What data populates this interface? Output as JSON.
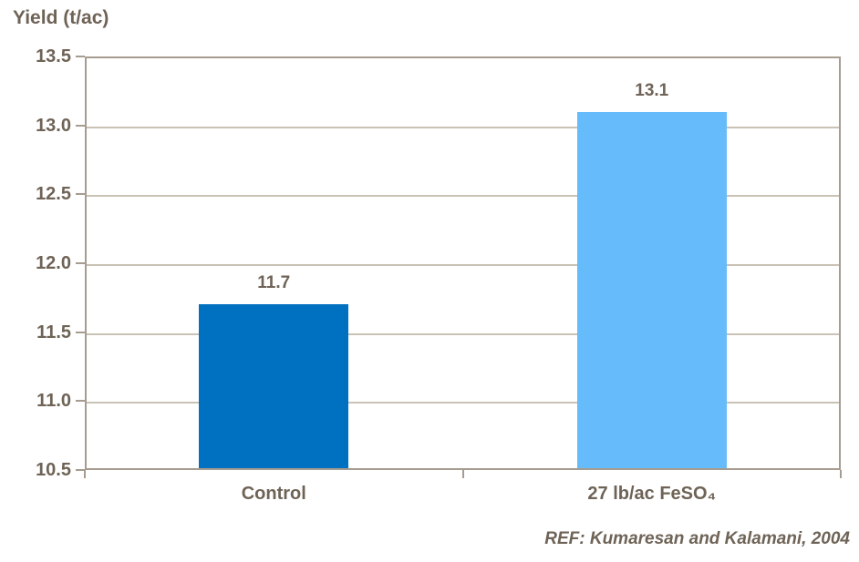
{
  "chart_data": {
    "type": "bar",
    "title": "Yield (t/ac)",
    "categories": [
      "Control",
      "27 lb/ac FeSO₄"
    ],
    "values": [
      11.7,
      13.1
    ],
    "value_labels": [
      "11.7",
      "13.1"
    ],
    "bar_colors": [
      "#0070C0",
      "#66BBFA"
    ],
    "ylabel": "Yield (t/ac)",
    "xlabel": "",
    "ylim": [
      10.5,
      13.5
    ],
    "yticks": [
      10.5,
      11.0,
      11.5,
      12.0,
      12.5,
      13.0,
      13.5
    ],
    "ytick_format_decimals": 1,
    "grid": true,
    "legend": false,
    "annotation": "REF: Kumaresan and Kalamani, 2004"
  },
  "colors": {
    "background": "#FFFFFF",
    "text": "#6E6356",
    "axis": "#A69C8F",
    "gridline": "#C9C2B5"
  }
}
